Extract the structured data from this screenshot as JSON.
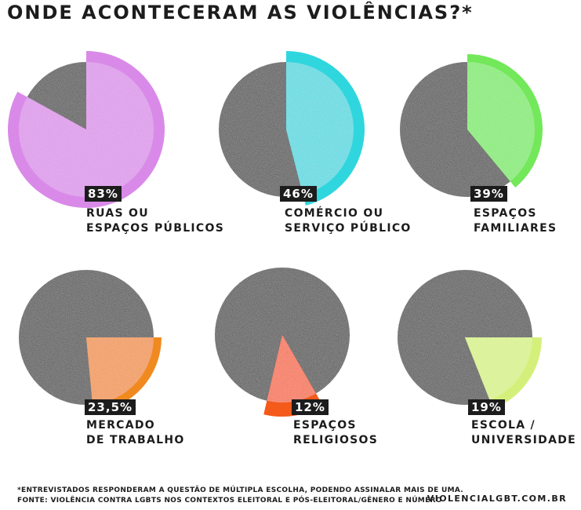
{
  "title": "ONDE ACONTECERAM AS VIOLÊNCIAS?*",
  "chart_data": {
    "type": "pie",
    "unit": "%",
    "series": [
      {
        "value": 83,
        "value_label": "83%",
        "label_lines": [
          "RUAS OU",
          "ESPAÇOS PÚBLICOS"
        ],
        "color": "#d98ae8"
      },
      {
        "value": 46,
        "value_label": "46%",
        "label_lines": [
          "COMÉRCIO OU",
          "SERVIÇO PÚBLICO"
        ],
        "color": "#2fd6de"
      },
      {
        "value": 39,
        "value_label": "39%",
        "label_lines": [
          "ESPAÇOS",
          "FAMILIARES"
        ],
        "color": "#72e85a"
      },
      {
        "value": 23.5,
        "value_label": "23,5%",
        "label_lines": [
          "MERCADO",
          "DE TRABALHO"
        ],
        "color": "#f08a1f"
      },
      {
        "value": 12,
        "value_label": "12%",
        "label_lines": [
          "ESPAÇOS",
          "RELIGIOSOS"
        ],
        "color": "#f45a1a"
      },
      {
        "value": 19,
        "value_label": "19%",
        "label_lines": [
          "ESCOLA /",
          "UNIVERSIDADE"
        ],
        "color": "#d4f07a"
      }
    ],
    "remainder_color": "#2e2e2e"
  },
  "footnote": {
    "line1": "*ENTREVISTADOS RESPONDERAM A QUESTÃO DE MÚLTIPLA ESCOLHA, PODENDO ASSINALAR MAIS DE UMA.",
    "line2": "FONTE: VIOLÊNCIA CONTRA LGBTS NOS CONTEXTOS ELEITORAL E PÓS-ELEITORAL/GÊNERO E NÚMERO"
  },
  "website": "VIOLENCIALGBT.COM.BR"
}
